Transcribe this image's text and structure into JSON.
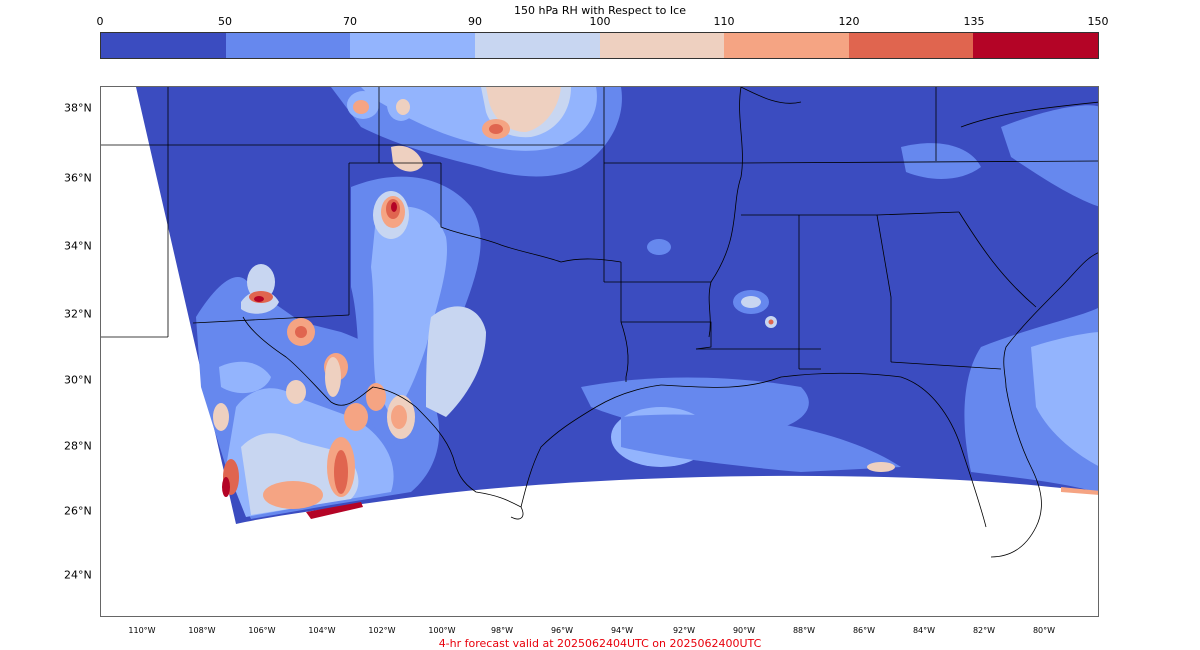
{
  "colorbar": {
    "title": "150 hPa RH with Respect to Ice",
    "ticks": [
      "0",
      "50",
      "70",
      "90",
      "100",
      "110",
      "120",
      "135",
      "150"
    ],
    "colors": [
      "#3b4cc0",
      "#6688ee",
      "#93b4fd",
      "#c8d6f1",
      "#eed0c0",
      "#f5a483",
      "#e0654f",
      "#b40426"
    ]
  },
  "map": {
    "lat_labels": [
      "38°N",
      "36°N",
      "34°N",
      "32°N",
      "30°N",
      "28°N",
      "26°N",
      "24°N"
    ],
    "lon_labels": [
      "110°W",
      "108°W",
      "106°W",
      "104°W",
      "102°W",
      "100°W",
      "98°W",
      "96°W",
      "94°W",
      "92°W",
      "90°W",
      "88°W",
      "86°W",
      "84°W",
      "82°W",
      "80°W"
    ],
    "background_color": "#3b4cc0",
    "border_color": "#000000"
  },
  "footer": {
    "text": "4-hr forecast valid at 2025062404UTC on 2025062400UTC",
    "color": "#e8000b"
  }
}
